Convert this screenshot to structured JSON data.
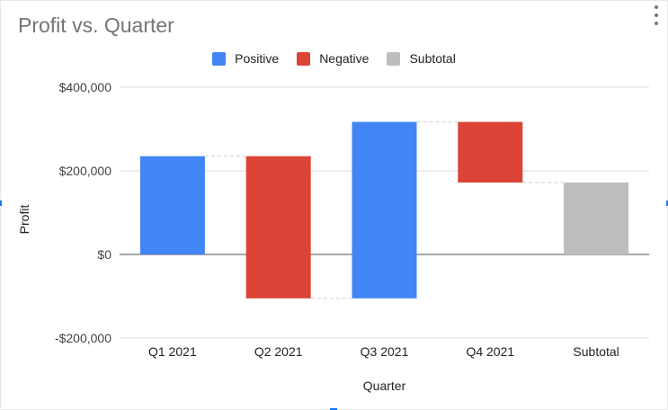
{
  "chart_data": {
    "type": "waterfall",
    "title": "Profit vs. Quarter",
    "xlabel": "Quarter",
    "ylabel": "Profit",
    "ylim": [
      -200000,
      400000
    ],
    "yticks": [
      -200000,
      0,
      200000,
      400000
    ],
    "ytick_labels": [
      "-$200,000",
      "$0",
      "$200,000",
      "$400,000"
    ],
    "grid": true,
    "legend_position": "top",
    "legend": [
      {
        "label": "Positive",
        "color": "#4285f4"
      },
      {
        "label": "Negative",
        "color": "#db4437"
      },
      {
        "label": "Subtotal",
        "color": "#bdbdbd"
      }
    ],
    "categories": [
      "Q1 2021",
      "Q2 2021",
      "Q3 2021",
      "Q4 2021",
      "Subtotal"
    ],
    "bars": [
      {
        "category": "Q1 2021",
        "kind": "Positive",
        "start": 0,
        "end": 235000,
        "change": 235000
      },
      {
        "category": "Q2 2021",
        "kind": "Negative",
        "start": 235000,
        "end": -105000,
        "change": -340000
      },
      {
        "category": "Q3 2021",
        "kind": "Positive",
        "start": -105000,
        "end": 317000,
        "change": 422000
      },
      {
        "category": "Q4 2021",
        "kind": "Negative",
        "start": 317000,
        "end": 172000,
        "change": -145000
      },
      {
        "category": "Subtotal",
        "kind": "Subtotal",
        "start": 0,
        "end": 172000,
        "change": 172000
      }
    ]
  }
}
